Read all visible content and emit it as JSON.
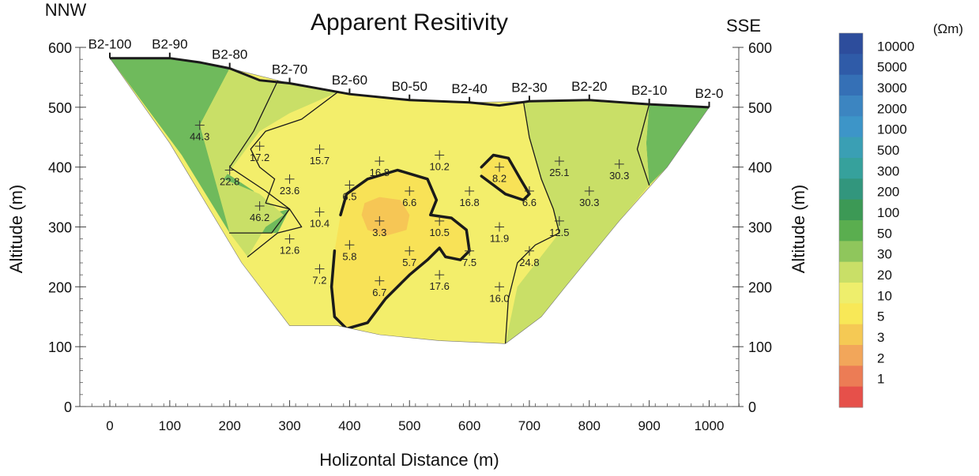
{
  "chart_data": {
    "type": "heatmap",
    "title": "Apparent Resitivity",
    "xlabel": "Holizontal Distance (m)",
    "ylabel_left": "Altitude (m)",
    "ylabel_right": "Altitude (m)",
    "direction_left": "NNW",
    "direction_right": "SSE",
    "xlim": [
      -50,
      1050
    ],
    "ylim": [
      0,
      600
    ],
    "x_ticks": [
      0,
      100,
      200,
      300,
      400,
      500,
      600,
      700,
      800,
      900,
      1000
    ],
    "y_ticks": [
      0,
      100,
      200,
      300,
      400,
      500,
      600
    ],
    "grid": false,
    "stations": [
      {
        "label": "B2-100",
        "x": 0
      },
      {
        "label": "B2-90",
        "x": 100
      },
      {
        "label": "B2-80",
        "x": 200
      },
      {
        "label": "B2-70",
        "x": 300
      },
      {
        "label": "B2-60",
        "x": 400
      },
      {
        "label": "B0-50",
        "x": 500
      },
      {
        "label": "B2-40",
        "x": 600
      },
      {
        "label": "B2-30",
        "x": 700
      },
      {
        "label": "B2-20",
        "x": 800
      },
      {
        "label": "B2-10",
        "x": 900
      },
      {
        "label": "B2-0",
        "x": 1000
      }
    ],
    "surface": [
      [
        0,
        582
      ],
      [
        50,
        582
      ],
      [
        100,
        582
      ],
      [
        150,
        575
      ],
      [
        200,
        565
      ],
      [
        250,
        545
      ],
      [
        300,
        540
      ],
      [
        400,
        522
      ],
      [
        500,
        512
      ],
      [
        600,
        508
      ],
      [
        650,
        503
      ],
      [
        700,
        510
      ],
      [
        800,
        512
      ],
      [
        900,
        505
      ],
      [
        1000,
        500
      ]
    ],
    "section_outline": [
      [
        0,
        582
      ],
      [
        100,
        582
      ],
      [
        200,
        565
      ],
      [
        300,
        540
      ],
      [
        400,
        522
      ],
      [
        500,
        512
      ],
      [
        600,
        508
      ],
      [
        700,
        510
      ],
      [
        800,
        512
      ],
      [
        900,
        505
      ],
      [
        1000,
        500
      ],
      [
        930,
        400
      ],
      [
        850,
        310
      ],
      [
        760,
        200
      ],
      [
        720,
        150
      ],
      [
        660,
        105
      ],
      [
        550,
        110
      ],
      [
        450,
        120
      ],
      [
        380,
        135
      ],
      [
        300,
        135
      ],
      [
        220,
        240
      ],
      [
        100,
        440
      ]
    ],
    "measurements": [
      {
        "x": 150,
        "y": 470,
        "value": 44.3
      },
      {
        "x": 250,
        "y": 435,
        "value": 17.2
      },
      {
        "x": 200,
        "y": 395,
        "value": 22.8
      },
      {
        "x": 300,
        "y": 380,
        "value": 23.6
      },
      {
        "x": 250,
        "y": 335,
        "value": 46.2
      },
      {
        "x": 350,
        "y": 430,
        "value": 15.7
      },
      {
        "x": 450,
        "y": 410,
        "value": 16.8
      },
      {
        "x": 550,
        "y": 420,
        "value": 10.2
      },
      {
        "x": 400,
        "y": 370,
        "value": 6.5
      },
      {
        "x": 500,
        "y": 360,
        "value": 6.6
      },
      {
        "x": 600,
        "y": 360,
        "value": 16.8
      },
      {
        "x": 650,
        "y": 400,
        "value": 8.2
      },
      {
        "x": 700,
        "y": 360,
        "value": 6.6
      },
      {
        "x": 750,
        "y": 410,
        "value": 25.1
      },
      {
        "x": 800,
        "y": 360,
        "value": 30.3
      },
      {
        "x": 850,
        "y": 405,
        "value": 30.3
      },
      {
        "x": 350,
        "y": 325,
        "value": 10.4
      },
      {
        "x": 450,
        "y": 310,
        "value": 3.3
      },
      {
        "x": 550,
        "y": 310,
        "value": 10.5
      },
      {
        "x": 650,
        "y": 300,
        "value": 11.9
      },
      {
        "x": 750,
        "y": 310,
        "value": 12.5
      },
      {
        "x": 300,
        "y": 280,
        "value": 12.6
      },
      {
        "x": 400,
        "y": 270,
        "value": 5.8
      },
      {
        "x": 500,
        "y": 260,
        "value": 5.7
      },
      {
        "x": 600,
        "y": 260,
        "value": 7.5
      },
      {
        "x": 700,
        "y": 260,
        "value": 24.8
      },
      {
        "x": 350,
        "y": 230,
        "value": 7.2
      },
      {
        "x": 450,
        "y": 210,
        "value": 6.7
      },
      {
        "x": 550,
        "y": 220,
        "value": 17.6
      },
      {
        "x": 650,
        "y": 200,
        "value": 16.0
      }
    ],
    "regions": [
      {
        "range": "30-50",
        "color": "#6fba5c",
        "polygon": [
          [
            0,
            582
          ],
          [
            100,
            582
          ],
          [
            200,
            565
          ],
          [
            150,
            470
          ],
          [
            180,
            400
          ],
          [
            240,
            360
          ],
          [
            260,
            320
          ],
          [
            300,
            330
          ],
          [
            280,
            290
          ],
          [
            200,
            290
          ],
          [
            120,
            420
          ]
        ]
      },
      {
        "range": "30-50",
        "color": "#6fba5c",
        "polygon": [
          [
            900,
            505
          ],
          [
            1000,
            500
          ],
          [
            930,
            400
          ],
          [
            900,
            370
          ],
          [
            895,
            440
          ]
        ]
      },
      {
        "range": "20-30",
        "color": "#c9df67",
        "polygon": [
          [
            200,
            565
          ],
          [
            250,
            545
          ],
          [
            300,
            540
          ],
          [
            380,
            525
          ],
          [
            300,
            490
          ],
          [
            250,
            460
          ],
          [
            220,
            420
          ],
          [
            190,
            380
          ],
          [
            250,
            355
          ],
          [
            290,
            320
          ],
          [
            260,
            300
          ],
          [
            230,
            250
          ],
          [
            200,
            290
          ],
          [
            150,
            470
          ]
        ]
      },
      {
        "range": "20-30",
        "color": "#c9df67",
        "polygon": [
          [
            690,
            510
          ],
          [
            800,
            512
          ],
          [
            900,
            505
          ],
          [
            895,
            440
          ],
          [
            900,
            370
          ],
          [
            850,
            310
          ],
          [
            760,
            200
          ],
          [
            720,
            150
          ],
          [
            660,
            105
          ],
          [
            680,
            200
          ],
          [
            750,
            290
          ],
          [
            740,
            330
          ],
          [
            720,
            380
          ],
          [
            700,
            450
          ]
        ]
      },
      {
        "range": "3-5",
        "color": "#f6c655",
        "polygon": [
          [
            420,
            320
          ],
          [
            430,
            295
          ],
          [
            460,
            285
          ],
          [
            495,
            295
          ],
          [
            500,
            320
          ],
          [
            485,
            345
          ],
          [
            450,
            350
          ],
          [
            425,
            340
          ]
        ]
      }
    ],
    "contours": [
      {
        "level": "10",
        "bold": true,
        "points": [
          [
            385,
            320
          ],
          [
            395,
            355
          ],
          [
            430,
            380
          ],
          [
            480,
            395
          ],
          [
            530,
            380
          ],
          [
            545,
            345
          ],
          [
            535,
            320
          ],
          [
            570,
            315
          ],
          [
            595,
            295
          ],
          [
            600,
            260
          ],
          [
            585,
            245
          ],
          [
            560,
            250
          ],
          [
            550,
            265
          ],
          [
            530,
            245
          ],
          [
            500,
            220
          ],
          [
            460,
            180
          ],
          [
            430,
            140
          ],
          [
            395,
            130
          ],
          [
            375,
            150
          ],
          [
            370,
            200
          ],
          [
            375,
            260
          ]
        ]
      },
      {
        "level": "10",
        "bold": true,
        "points": [
          [
            620,
            400
          ],
          [
            640,
            420
          ],
          [
            665,
            415
          ],
          [
            685,
            380
          ],
          [
            700,
            355
          ],
          [
            690,
            345
          ],
          [
            660,
            355
          ],
          [
            640,
            370
          ],
          [
            620,
            385
          ]
        ]
      },
      {
        "level": "20",
        "bold": false,
        "points": [
          [
            300,
            540
          ],
          [
            380,
            525
          ],
          [
            320,
            480
          ],
          [
            260,
            460
          ],
          [
            235,
            430
          ],
          [
            250,
            400
          ],
          [
            275,
            380
          ],
          [
            260,
            340
          ],
          [
            300,
            330
          ],
          [
            320,
            300
          ],
          [
            280,
            290
          ],
          [
            230,
            250
          ]
        ]
      },
      {
        "level": "20",
        "bold": false,
        "points": [
          [
            690,
            510
          ],
          [
            700,
            450
          ],
          [
            720,
            380
          ],
          [
            740,
            330
          ],
          [
            750,
            290
          ],
          [
            710,
            270
          ],
          [
            680,
            240
          ],
          [
            665,
            180
          ],
          [
            660,
            105
          ]
        ]
      },
      {
        "level": "30",
        "bold": false,
        "points": [
          [
            900,
            505
          ],
          [
            880,
            430
          ],
          [
            900,
            370
          ]
        ]
      },
      {
        "level": "30",
        "bold": false,
        "points": [
          [
            290,
            565
          ],
          [
            240,
            460
          ],
          [
            200,
            400
          ],
          [
            260,
            360
          ],
          [
            300,
            330
          ],
          [
            270,
            290
          ],
          [
            200,
            290
          ]
        ]
      }
    ],
    "colorbar": {
      "unit": "(Ωm)",
      "labels": [
        "10000",
        "5000",
        "3000",
        "2000",
        "1000",
        "500",
        "300",
        "200",
        "100",
        "50",
        "30",
        "20",
        "10",
        "5",
        "3",
        "2",
        "1"
      ],
      "colors": [
        "#2d4d9c",
        "#2f5ba8",
        "#3570b6",
        "#3c85c1",
        "#3d95c8",
        "#3a9fb4",
        "#36a19c",
        "#32967d",
        "#3c9955",
        "#5aae4f",
        "#8fc65c",
        "#c9df67",
        "#eeee6c",
        "#f8e857",
        "#f5c954",
        "#f2a65a",
        "#ec7c55",
        "#e6504a"
      ]
    }
  }
}
